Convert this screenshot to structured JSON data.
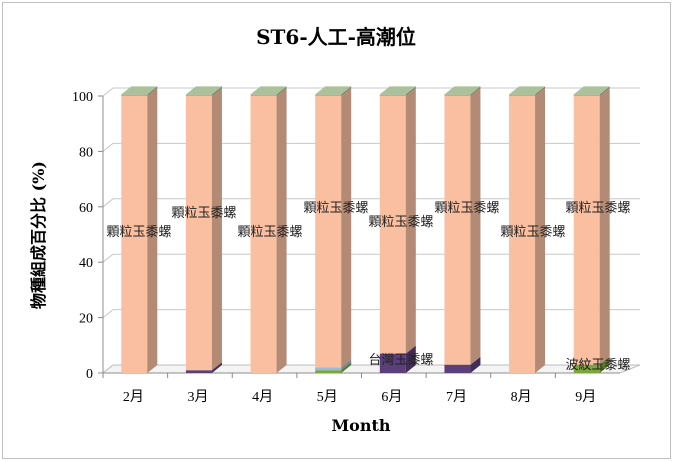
{
  "chart_data": {
    "type": "bar",
    "stacked": true,
    "three_d": true,
    "title": "ST6-人工-高潮位",
    "xlabel": "Month",
    "ylabel": "物種組成百分比 (%)",
    "ylim": [
      0,
      100
    ],
    "yticks": [
      "0",
      "20",
      "40",
      "60",
      "80",
      "100"
    ],
    "grid": true,
    "categories": [
      "2月",
      "3月",
      "4月",
      "5月",
      "6月",
      "7月",
      "8月",
      "9月"
    ],
    "series": [
      {
        "name": "台灣玉黍螺",
        "color": "#5b3f7a",
        "values": [
          0,
          1,
          0,
          0,
          7,
          3,
          0,
          0
        ]
      },
      {
        "name": "波紋玉黍螺",
        "color": "#7aa63a",
        "values": [
          0,
          0,
          0,
          1,
          0,
          0,
          0,
          3
        ]
      },
      {
        "name": "",
        "color": "#9dbad6",
        "values": [
          0,
          0,
          0,
          1,
          0,
          0,
          0,
          0
        ]
      },
      {
        "name": "顆粒玉黍螺",
        "color": "#f9bfa0",
        "values": [
          100,
          99,
          100,
          98,
          93,
          97,
          100,
          97
        ]
      },
      {
        "name": "",
        "color": "#a3b894",
        "values": [
          0.6,
          0.6,
          0.6,
          0.6,
          0.6,
          0.6,
          0.6,
          0.6
        ]
      }
    ],
    "data_labels": [
      {
        "text": "顆粒玉黍螺",
        "category": "2月"
      },
      {
        "text": "顆粒玉黍螺",
        "category": "3月"
      },
      {
        "text": "顆粒玉黍螺",
        "category": "4月"
      },
      {
        "text": "顆粒玉黍螺",
        "category": "5月"
      },
      {
        "text": "顆粒玉黍螺",
        "category": "6月"
      },
      {
        "text": "台灣玉黍螺",
        "category": "6月"
      },
      {
        "text": "顆粒玉黍螺",
        "category": "7月"
      },
      {
        "text": "顆粒玉黍螺",
        "category": "8月"
      },
      {
        "text": "顆粒玉黍螺",
        "category": "9月"
      },
      {
        "text": "波紋玉黍螺",
        "category": "9月"
      }
    ]
  }
}
